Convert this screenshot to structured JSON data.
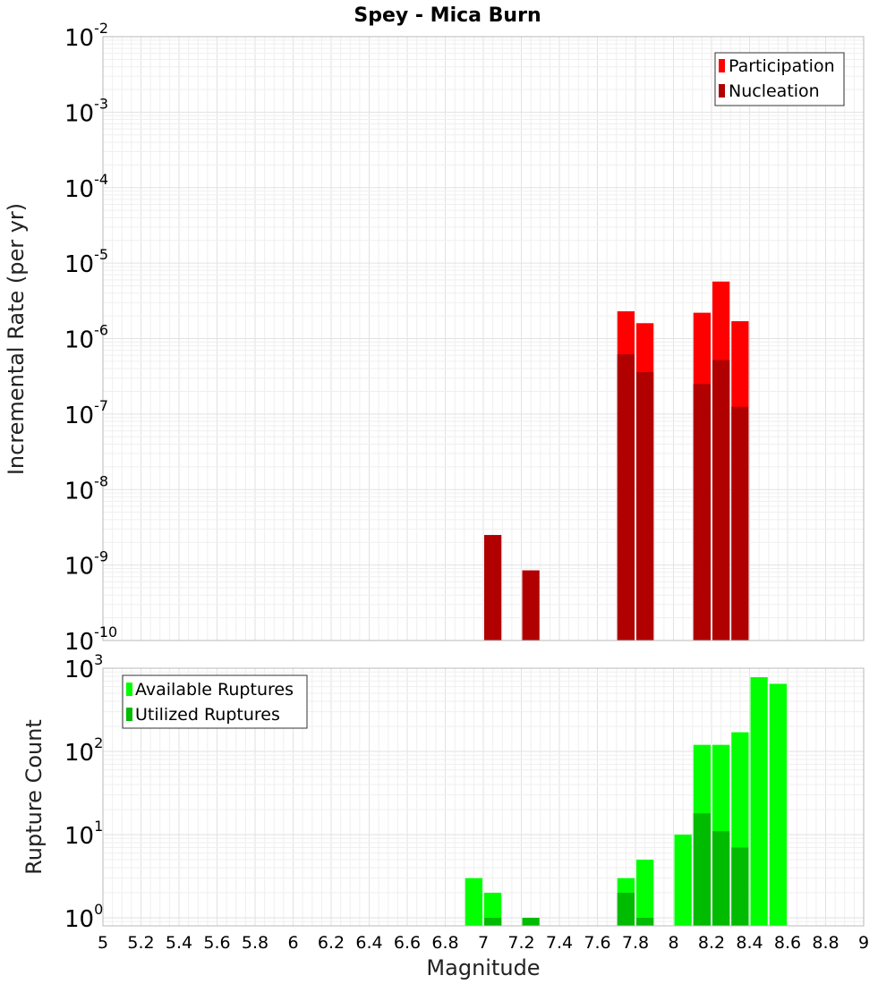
{
  "chart_data": [
    {
      "type": "bar",
      "title": "Spey - Mica Burn",
      "xlabel": "",
      "ylabel": "Incremental Rate (per yr)",
      "yscale": "log",
      "ylim": [
        1e-10,
        0.01
      ],
      "xlim": [
        5,
        9
      ],
      "bar_width": 0.1,
      "legend_position": "top-right",
      "series": [
        {
          "name": "Participation",
          "color": "#ff0000",
          "x": [
            7.75,
            7.85,
            8.15,
            8.25,
            8.35
          ],
          "values": [
            2.3e-06,
            1.6e-06,
            2.2e-06,
            5.7e-06,
            1.7e-06
          ]
        },
        {
          "name": "Nucleation",
          "color": "#b00000",
          "x": [
            7.05,
            7.25,
            7.75,
            7.85,
            8.15,
            8.25,
            8.35
          ],
          "values": [
            2.5e-09,
            8.5e-10,
            6.2e-07,
            3.6e-07,
            2.5e-07,
            5.2e-07,
            1.25e-07
          ]
        }
      ]
    },
    {
      "type": "bar",
      "title": "",
      "xlabel": "Magnitude",
      "ylabel": "Rupture Count",
      "yscale": "log",
      "ylim": [
        0.8,
        1000
      ],
      "xlim": [
        5,
        9
      ],
      "bar_width": 0.1,
      "legend_position": "top-left",
      "series": [
        {
          "name": "Available Ruptures",
          "color": "#00ff00",
          "x": [
            6.95,
            7.05,
            7.75,
            7.85,
            8.05,
            8.15,
            8.25,
            8.35,
            8.45,
            8.55
          ],
          "values": [
            3,
            2,
            3,
            5,
            10,
            120,
            120,
            170,
            780,
            650
          ]
        },
        {
          "name": "Utilized Ruptures",
          "color": "#00bb00",
          "x": [
            7.05,
            7.25,
            7.75,
            7.85,
            8.15,
            8.25,
            8.35
          ],
          "values": [
            1,
            1,
            2,
            1,
            18,
            11,
            7
          ]
        }
      ]
    }
  ],
  "x_ticks": [
    "5",
    "5.2",
    "5.4",
    "5.6",
    "5.8",
    "6",
    "6.2",
    "6.4",
    "6.6",
    "6.8",
    "7",
    "7.2",
    "7.4",
    "7.6",
    "7.8",
    "8",
    "8.2",
    "8.4",
    "8.6",
    "8.8",
    "9"
  ],
  "top_y_ticks": [
    {
      "base": "10",
      "exp": "-10"
    },
    {
      "base": "10",
      "exp": "-9"
    },
    {
      "base": "10",
      "exp": "-8"
    },
    {
      "base": "10",
      "exp": "-7"
    },
    {
      "base": "10",
      "exp": "-6"
    },
    {
      "base": "10",
      "exp": "-5"
    },
    {
      "base": "10",
      "exp": "-4"
    },
    {
      "base": "10",
      "exp": "-3"
    },
    {
      "base": "10",
      "exp": "-2"
    }
  ],
  "bottom_y_ticks": [
    {
      "base": "10",
      "exp": "0"
    },
    {
      "base": "10",
      "exp": "1"
    },
    {
      "base": "10",
      "exp": "2"
    },
    {
      "base": "10",
      "exp": "3"
    }
  ]
}
